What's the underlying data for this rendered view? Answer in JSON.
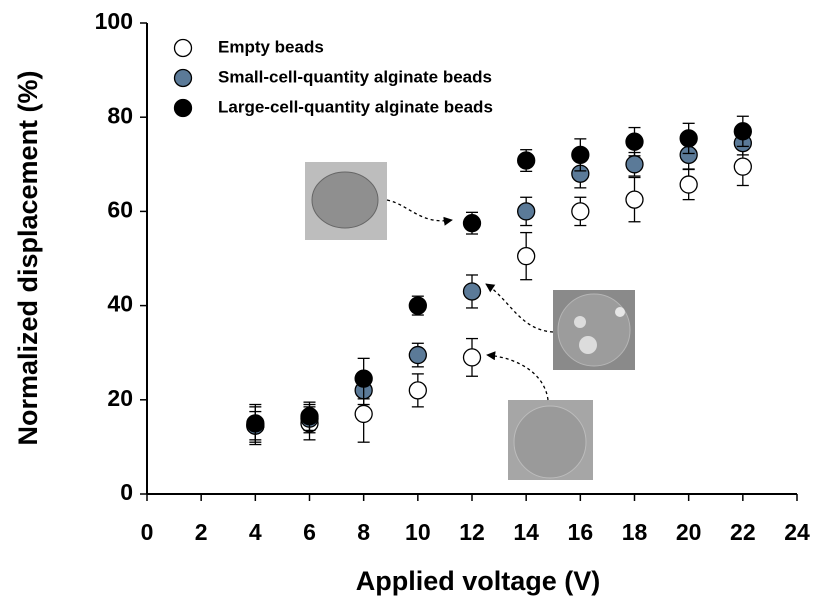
{
  "chart_data": {
    "type": "scatter",
    "x_label": "Applied voltage (V)",
    "y_label": "Normalized displacement (%)",
    "x": [
      4,
      6,
      8,
      10,
      12,
      14,
      16,
      18,
      20,
      22
    ],
    "series": [
      {
        "name": "Empty beads",
        "color": "#ffffff",
        "values": [
          14.5,
          15,
          17,
          22,
          29,
          50.5,
          60,
          62.5,
          65.7,
          69.5
        ],
        "errors": [
          4,
          3.5,
          6,
          3.5,
          4,
          5,
          3,
          4.7,
          3.2,
          4
        ]
      },
      {
        "name": "Small-cell-quantity alginate beads",
        "color": "#5b7a98",
        "values": [
          14.5,
          16,
          22,
          29.5,
          43,
          60,
          68,
          70,
          72,
          74.5
        ],
        "errors": [
          3,
          3,
          3,
          2.5,
          3.5,
          3,
          3,
          2.5,
          3,
          2.5
        ]
      },
      {
        "name": "Large-cell-quantity alginate beads",
        "color": "#000000",
        "values": [
          15,
          16.5,
          24.5,
          40,
          57.5,
          70.8,
          72,
          74.8,
          75.5,
          77
        ],
        "errors": [
          4,
          3,
          4.3,
          2,
          2.3,
          2.3,
          3.4,
          3,
          3.2,
          3.2
        ]
      }
    ],
    "xlim": [
      0,
      24
    ],
    "xticks": [
      0,
      2,
      4,
      6,
      8,
      10,
      12,
      14,
      16,
      18,
      20,
      22,
      24
    ],
    "ylim": [
      0,
      100
    ],
    "yticks": [
      0,
      20,
      40,
      60,
      80,
      100
    ]
  }
}
